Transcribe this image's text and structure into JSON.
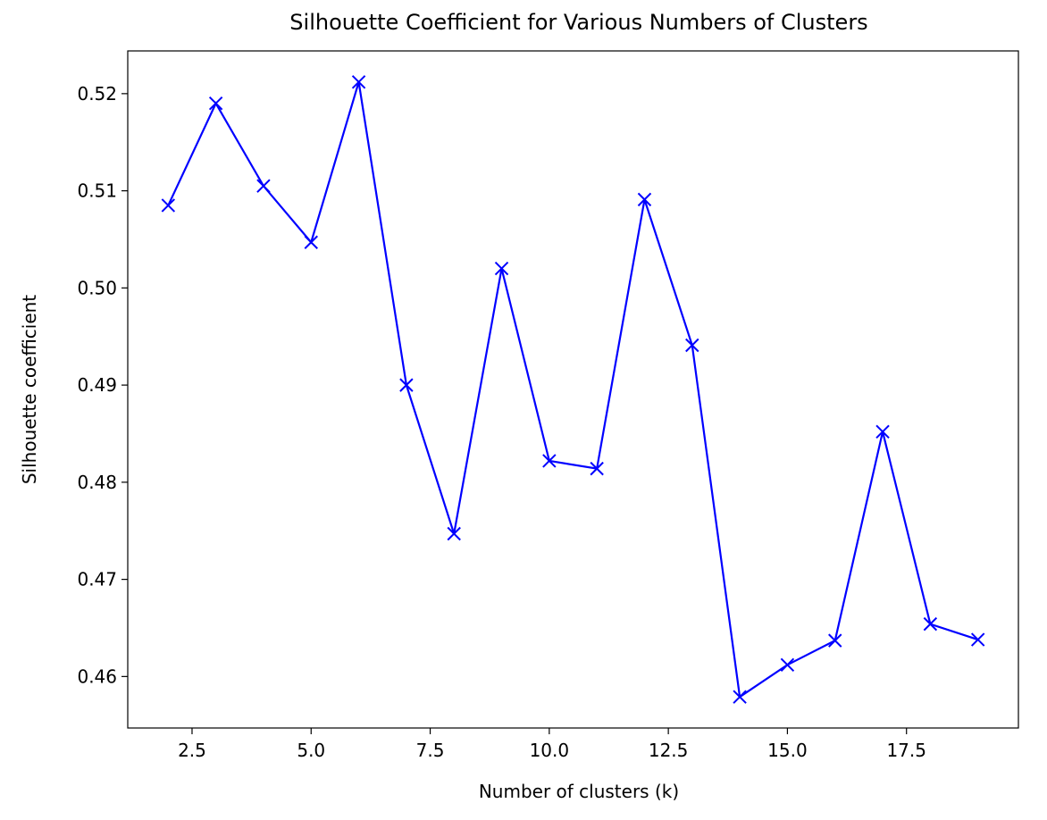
{
  "chart_data": {
    "type": "line",
    "title": "Silhouette Coefficient for Various Numbers of Clusters",
    "x_label": "Number of clusters (k)",
    "y_label": "Silhouette coefficient",
    "x": [
      2,
      3,
      4,
      5,
      6,
      7,
      8,
      9,
      10,
      11,
      12,
      13,
      14,
      15,
      16,
      17,
      18,
      19
    ],
    "series": [
      {
        "name": "Silhouette coefficient",
        "color": "#0000ff",
        "marker": "x",
        "values": [
          0.5085,
          0.519,
          0.5105,
          0.5047,
          0.5212,
          0.49,
          0.4747,
          0.502,
          0.4822,
          0.4814,
          0.5091,
          0.4941,
          0.4579,
          0.4612,
          0.4637,
          0.4852,
          0.4654,
          0.4638
        ]
      }
    ],
    "xlim": [
      1.15,
      19.85
    ],
    "ylim": [
      0.4547,
      0.5244
    ],
    "xticks": [
      2.5,
      {
        "value": 5,
        "label": "5.0"
      },
      7.5,
      {
        "value": 10,
        "label": "10.0"
      },
      12.5,
      {
        "value": 15,
        "label": "15.0"
      },
      17.5
    ],
    "yticks": [
      0.46,
      0.47,
      0.48,
      0.49,
      {
        "value": 0.5,
        "label": "0.50"
      },
      0.51,
      0.52
    ],
    "grid": false
  }
}
